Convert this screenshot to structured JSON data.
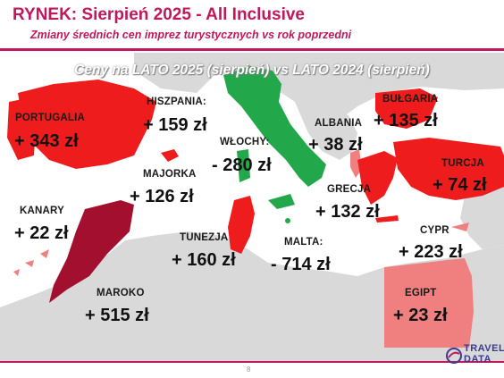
{
  "header": {
    "title": "RYNEK: Sierpień 2025 - All Inclusive",
    "subtitle": "Zmiany średnich cen imprez turystycznych vs rok poprzedni"
  },
  "map": {
    "heading": "Ceny na LATO 2025 (sierpień) vs  LATO 2024 (sierpień)",
    "colors": {
      "sea": "#ffffff",
      "land": "#d9d9d9",
      "increase": "#ee1c1c",
      "decrease": "#22a84a",
      "strong": "#a3102f",
      "light": "#f08080"
    },
    "countries": [
      {
        "name": "PORTUGALIA",
        "value": "+ 343 zł"
      },
      {
        "name": "HISZPANIA:",
        "value": "+ 159 zł"
      },
      {
        "name": "WŁOCHY:",
        "value": "- 280 zł"
      },
      {
        "name": "ALBANIA",
        "value": "+ 38 zł"
      },
      {
        "name": "BUŁGARIA",
        "value": "+ 135 zł"
      },
      {
        "name": "MAJORKA",
        "value": "+ 126 zł"
      },
      {
        "name": "TURCJA",
        "value": "+ 74 zł"
      },
      {
        "name": "GRECJA",
        "value": "+ 132 zł"
      },
      {
        "name": "KANARY",
        "value": "+ 22 zł"
      },
      {
        "name": "TUNEZJA",
        "value": "+ 160 zł"
      },
      {
        "name": "MALTA:",
        "value": "- 714 zł"
      },
      {
        "name": "CYPR",
        "value": "+ 223 zł"
      },
      {
        "name": "MAROKO",
        "value": "+ 515 zł"
      },
      {
        "name": "EGIPT",
        "value": "+ 23 zł"
      }
    ]
  },
  "footer": {
    "page_number": "8",
    "logo_line1": "TRAVEL",
    "logo_line2": "DATA"
  }
}
